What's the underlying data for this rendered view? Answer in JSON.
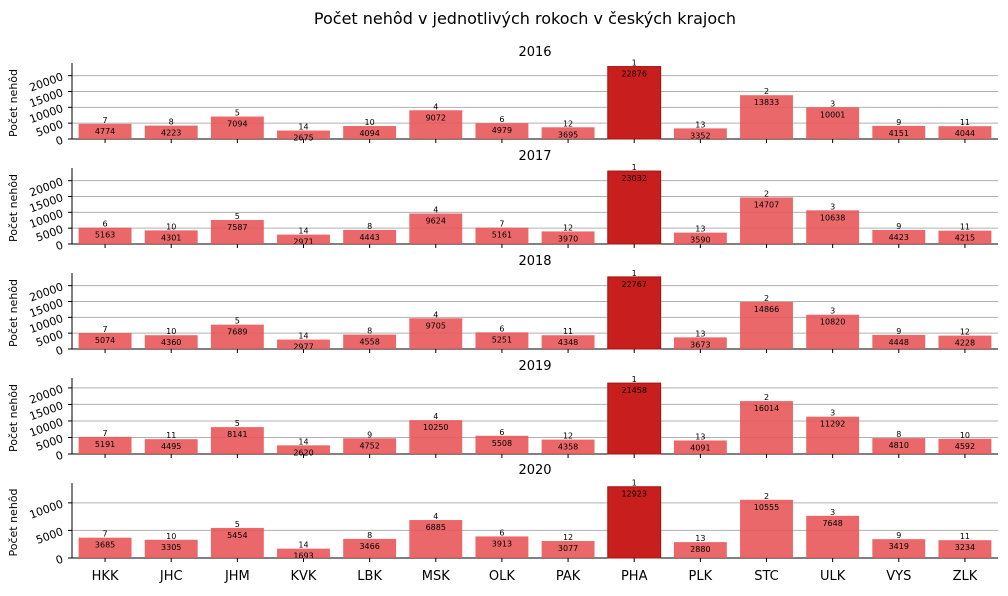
{
  "figure": {
    "title": "Počet nehôd v jednotlivých rokoch v českých krajoch"
  },
  "chart_data": [
    {
      "type": "bar",
      "title": "2016",
      "ylabel": "Počet nehôd",
      "categories": [
        "HKK",
        "JHC",
        "JHM",
        "KVK",
        "LBK",
        "MSK",
        "OLK",
        "PAK",
        "PHA",
        "PLK",
        "STC",
        "ULK",
        "VYS",
        "ZLK"
      ],
      "values": [
        4774,
        4223,
        7094,
        2675,
        4094,
        9072,
        4979,
        3695,
        22876,
        3352,
        13833,
        10001,
        4151,
        4044
      ],
      "ranks": [
        7,
        8,
        5,
        14,
        10,
        4,
        6,
        12,
        1,
        13,
        2,
        3,
        9,
        11
      ],
      "yticks": [
        0,
        5000,
        10000,
        15000,
        20000
      ],
      "ylim": [
        0,
        24000
      ],
      "grid": "y"
    },
    {
      "type": "bar",
      "title": "2017",
      "ylabel": "Počet nehôd",
      "categories": [
        "HKK",
        "JHC",
        "JHM",
        "KVK",
        "LBK",
        "MSK",
        "OLK",
        "PAK",
        "PHA",
        "PLK",
        "STC",
        "ULK",
        "VYS",
        "ZLK"
      ],
      "values": [
        5163,
        4301,
        7587,
        2971,
        4443,
        9624,
        5161,
        3970,
        23032,
        3590,
        14707,
        10638,
        4423,
        4215
      ],
      "ranks": [
        6,
        10,
        5,
        14,
        8,
        4,
        7,
        12,
        1,
        13,
        2,
        3,
        9,
        11
      ],
      "yticks": [
        0,
        5000,
        10000,
        15000,
        20000
      ],
      "ylim": [
        0,
        24000
      ],
      "grid": "y"
    },
    {
      "type": "bar",
      "title": "2018",
      "ylabel": "Počet nehôd",
      "categories": [
        "HKK",
        "JHC",
        "JHM",
        "KVK",
        "LBK",
        "MSK",
        "OLK",
        "PAK",
        "PHA",
        "PLK",
        "STC",
        "ULK",
        "VYS",
        "ZLK"
      ],
      "values": [
        5074,
        4360,
        7689,
        2977,
        4558,
        9705,
        5251,
        4348,
        22767,
        3673,
        14866,
        10820,
        4448,
        4228
      ],
      "ranks": [
        7,
        10,
        5,
        14,
        8,
        4,
        6,
        11,
        1,
        13,
        2,
        3,
        9,
        12
      ],
      "yticks": [
        0,
        5000,
        10000,
        15000,
        20000
      ],
      "ylim": [
        0,
        24000
      ],
      "grid": "y"
    },
    {
      "type": "bar",
      "title": "2019",
      "ylabel": "Počet nehôd",
      "categories": [
        "HKK",
        "JHC",
        "JHM",
        "KVK",
        "LBK",
        "MSK",
        "OLK",
        "PAK",
        "PHA",
        "PLK",
        "STC",
        "ULK",
        "VYS",
        "ZLK"
      ],
      "values": [
        5191,
        4495,
        8141,
        2620,
        4752,
        10250,
        5508,
        4358,
        21458,
        4091,
        16014,
        11292,
        4810,
        4592
      ],
      "ranks": [
        7,
        11,
        5,
        14,
        9,
        4,
        6,
        12,
        1,
        13,
        2,
        3,
        8,
        10
      ],
      "yticks": [
        0,
        5000,
        10000,
        15000,
        20000
      ],
      "ylim": [
        0,
        23000
      ],
      "grid": "y"
    },
    {
      "type": "bar",
      "title": "2020",
      "ylabel": "Počet nehôd",
      "categories": [
        "HKK",
        "JHC",
        "JHM",
        "KVK",
        "LBK",
        "MSK",
        "OLK",
        "PAK",
        "PHA",
        "PLK",
        "STC",
        "ULK",
        "VYS",
        "ZLK"
      ],
      "values": [
        3685,
        3305,
        5454,
        1693,
        3466,
        6885,
        3913,
        3077,
        12923,
        2880,
        10555,
        7648,
        3419,
        3234
      ],
      "ranks": [
        7,
        10,
        5,
        14,
        8,
        4,
        6,
        12,
        1,
        13,
        2,
        3,
        9,
        11
      ],
      "yticks": [
        0,
        5000,
        10000
      ],
      "ylim": [
        0,
        13600
      ],
      "grid": "y"
    }
  ],
  "colors": {
    "bar": "#e9585a",
    "highlight": "#c81e1e",
    "grid": "#b0b0b0",
    "axis": "#000000",
    "text": "#000000"
  }
}
